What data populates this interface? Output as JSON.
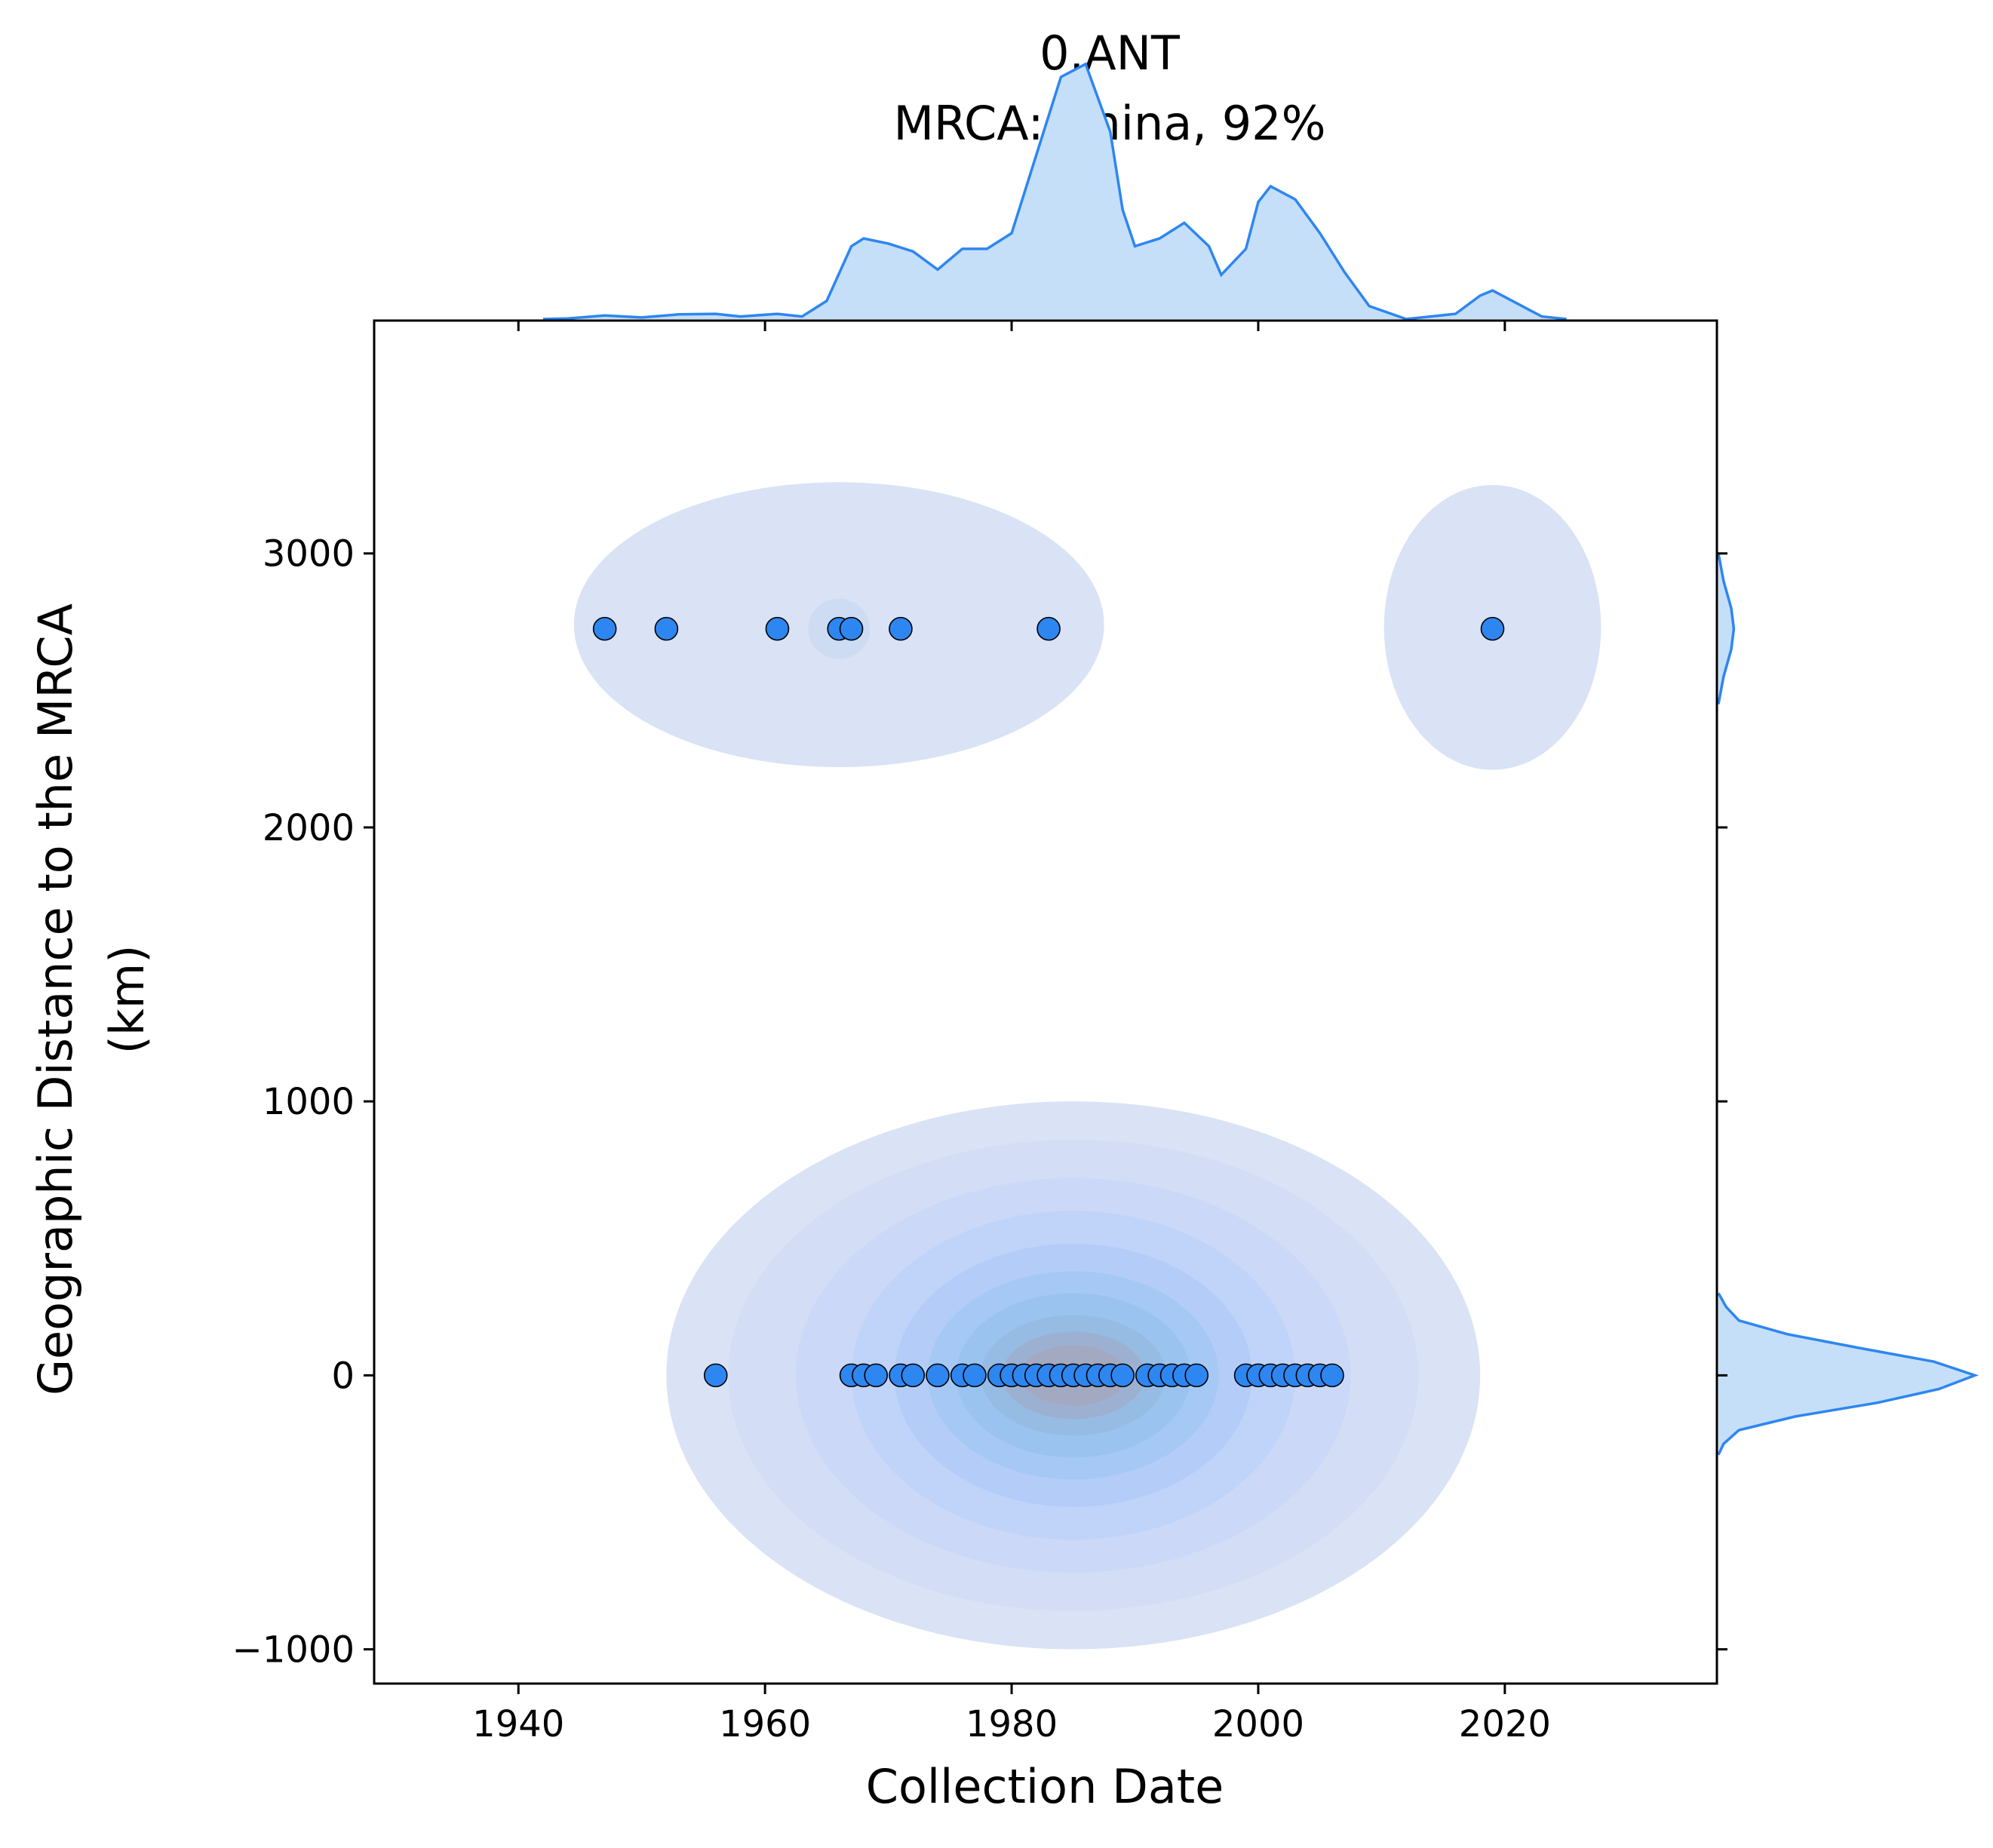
{
  "title": {
    "line1": "0.ANT",
    "line2": "MRCA: China, 92%"
  },
  "colors": {
    "point_fill": "#2E86F0",
    "point_edge": "#000000",
    "kde_line": "#2E86F0",
    "kde_fill": "#C5DFF8",
    "contour_outer": "#D9E3F5",
    "contour_mid": "#9DC4F2",
    "contour_core": "#A7A9BC"
  },
  "chart_data": {
    "type": "scatter",
    "subtype": "jointplot with bivariate KDE contours and marginal KDEs",
    "xlabel": "Collection Date",
    "ylabel_line1": "Geographic Distance to the MRCA",
    "ylabel_line2": "(km)",
    "xlim": [
      1928.3,
      2037.2
    ],
    "ylim": [
      -1125,
      3850
    ],
    "x_ticks": [
      1940,
      1960,
      1980,
      2000,
      2020
    ],
    "y_ticks": [
      -1000,
      0,
      1000,
      2000,
      3000
    ],
    "x_tick_labels": [
      "1940",
      "1960",
      "1980",
      "2000",
      "2020"
    ],
    "y_tick_labels": [
      "−1000",
      "0",
      "1000",
      "2000",
      "3000"
    ],
    "grid": false,
    "points": [
      {
        "x": 1947,
        "y": 2725
      },
      {
        "x": 1952,
        "y": 2725
      },
      {
        "x": 1961,
        "y": 2725
      },
      {
        "x": 1966,
        "y": 2725
      },
      {
        "x": 1967,
        "y": 2725
      },
      {
        "x": 1971,
        "y": 2725
      },
      {
        "x": 1983,
        "y": 2725
      },
      {
        "x": 2019,
        "y": 2725
      },
      {
        "x": 1956,
        "y": 0
      },
      {
        "x": 1967,
        "y": 0
      },
      {
        "x": 1968,
        "y": 0
      },
      {
        "x": 1969,
        "y": 0
      },
      {
        "x": 1971,
        "y": 0
      },
      {
        "x": 1972,
        "y": 0
      },
      {
        "x": 1974,
        "y": 0
      },
      {
        "x": 1976,
        "y": 0
      },
      {
        "x": 1977,
        "y": 0
      },
      {
        "x": 1979,
        "y": 0
      },
      {
        "x": 1980,
        "y": 0
      },
      {
        "x": 1981,
        "y": 0
      },
      {
        "x": 1982,
        "y": 0
      },
      {
        "x": 1983,
        "y": 0
      },
      {
        "x": 1984,
        "y": 0
      },
      {
        "x": 1985,
        "y": 0
      },
      {
        "x": 1986,
        "y": 0
      },
      {
        "x": 1987,
        "y": 0
      },
      {
        "x": 1988,
        "y": 0
      },
      {
        "x": 1989,
        "y": 0
      },
      {
        "x": 1991,
        "y": 0
      },
      {
        "x": 1992,
        "y": 0
      },
      {
        "x": 1993,
        "y": 0
      },
      {
        "x": 1994,
        "y": 0
      },
      {
        "x": 1995,
        "y": 0
      },
      {
        "x": 1999,
        "y": 0
      },
      {
        "x": 2000,
        "y": 0
      },
      {
        "x": 2001,
        "y": 0
      },
      {
        "x": 2002,
        "y": 0
      },
      {
        "x": 2003,
        "y": 0
      },
      {
        "x": 2004,
        "y": 0
      },
      {
        "x": 2005,
        "y": 0
      },
      {
        "x": 2006,
        "y": 0
      }
    ],
    "marginal_x_density": [
      [
        1942,
        0.0
      ],
      [
        1944,
        0.002
      ],
      [
        1947,
        0.014
      ],
      [
        1950,
        0.006
      ],
      [
        1953,
        0.018
      ],
      [
        1956,
        0.02
      ],
      [
        1958,
        0.01
      ],
      [
        1961,
        0.02
      ],
      [
        1963,
        0.01
      ],
      [
        1965,
        0.07
      ],
      [
        1967,
        0.28
      ],
      [
        1968,
        0.31
      ],
      [
        1970,
        0.29
      ],
      [
        1972,
        0.26
      ],
      [
        1974,
        0.19
      ],
      [
        1976,
        0.27
      ],
      [
        1978,
        0.27
      ],
      [
        1980,
        0.33
      ],
      [
        1982,
        0.63
      ],
      [
        1984,
        0.93
      ],
      [
        1986,
        0.98
      ],
      [
        1988,
        0.72
      ],
      [
        1989,
        0.42
      ],
      [
        1990,
        0.28
      ],
      [
        1992,
        0.31
      ],
      [
        1994,
        0.37
      ],
      [
        1996,
        0.28
      ],
      [
        1997,
        0.17
      ],
      [
        1999,
        0.27
      ],
      [
        2000,
        0.45
      ],
      [
        2001,
        0.51
      ],
      [
        2003,
        0.46
      ],
      [
        2005,
        0.33
      ],
      [
        2007,
        0.18
      ],
      [
        2009,
        0.05
      ],
      [
        2012,
        0.0
      ],
      [
        2016,
        0.02
      ],
      [
        2018,
        0.09
      ],
      [
        2019,
        0.11
      ],
      [
        2021,
        0.06
      ],
      [
        2023,
        0.01
      ],
      [
        2025,
        0.0
      ]
    ],
    "marginal_y_density": [
      [
        -290,
        0.0
      ],
      [
        -250,
        0.02
      ],
      [
        -200,
        0.08
      ],
      [
        -150,
        0.3
      ],
      [
        -100,
        0.62
      ],
      [
        -50,
        0.86
      ],
      [
        0,
        1.0
      ],
      [
        50,
        0.84
      ],
      [
        100,
        0.55
      ],
      [
        150,
        0.27
      ],
      [
        200,
        0.08
      ],
      [
        250,
        0.03
      ],
      [
        300,
        0.0
      ],
      [
        2450,
        0.0
      ],
      [
        2550,
        0.02
      ],
      [
        2650,
        0.05
      ],
      [
        2725,
        0.06
      ],
      [
        2800,
        0.05
      ],
      [
        2900,
        0.02
      ],
      [
        3000,
        0.0
      ]
    ]
  }
}
